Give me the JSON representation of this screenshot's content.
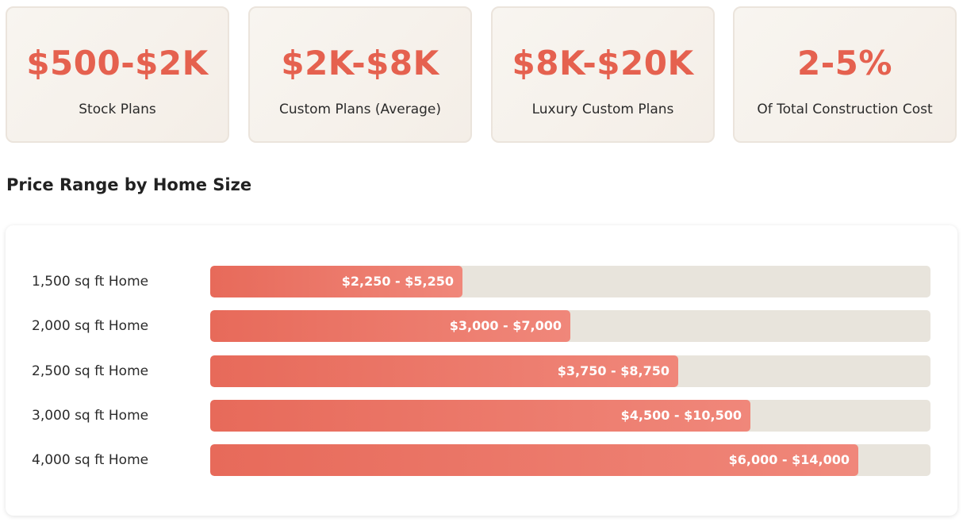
{
  "stats": [
    {
      "value": "$500-$2K",
      "label": "Stock Plans"
    },
    {
      "value": "$2K-$8K",
      "label": "Custom Plans (Average)"
    },
    {
      "value": "$8K-$20K",
      "label": "Luxury Custom Plans"
    },
    {
      "value": "2-5%",
      "label": "Of Total Construction Cost"
    }
  ],
  "section_title": "Price Range by Home Size",
  "colors": {
    "accent": "#e5614f",
    "bar_start": "#e76a5a",
    "bar_end": "#f0877a",
    "track": "#e8e4dc"
  },
  "chart_data": {
    "type": "bar",
    "orientation": "horizontal",
    "title": "Price Range by Home Size",
    "categories": [
      "1,500 sq ft Home",
      "2,000 sq ft Home",
      "2,500 sq ft Home",
      "3,000 sq ft Home",
      "4,000 sq ft Home"
    ],
    "values": [
      35,
      50,
      65,
      75,
      90
    ],
    "value_unit": "percent of track filled",
    "data_labels": [
      "$2,250 - $5,250",
      "$3,000 - $7,000",
      "$3,750 - $8,750",
      "$4,500 - $10,500",
      "$6,000 - $14,000"
    ],
    "xlim": [
      0,
      100
    ],
    "grid": false,
    "legend": "none"
  }
}
